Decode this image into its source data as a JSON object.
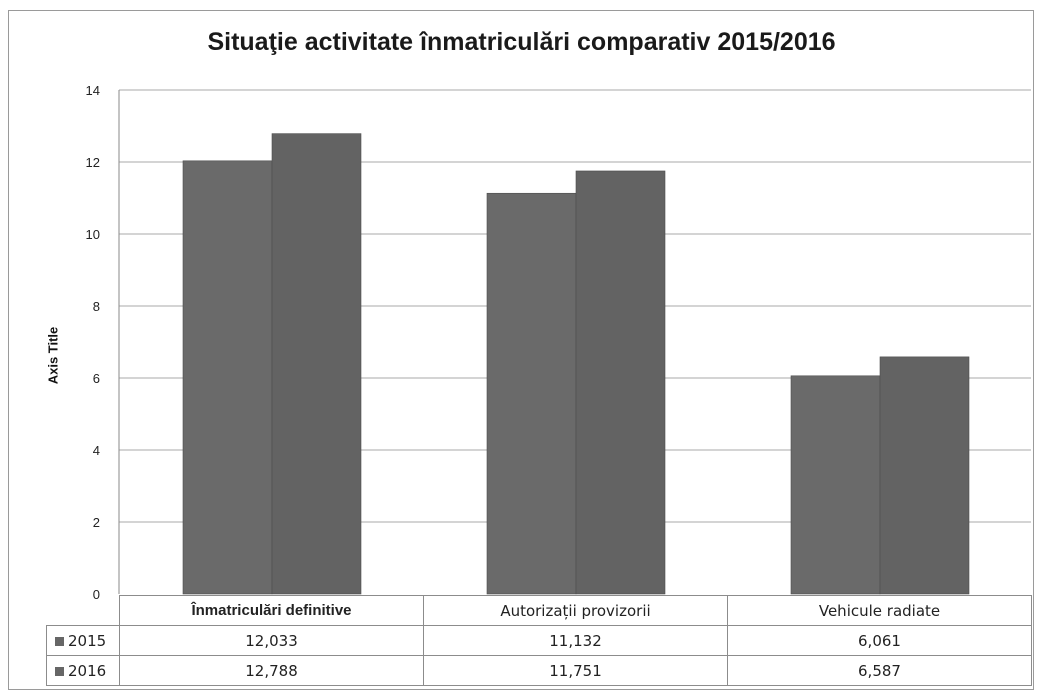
{
  "chart_data": {
    "type": "bar",
    "title": "Situaţie activitate înmatriculări comparativ 2015/2016",
    "xlabel": "",
    "ylabel": "Axis Title",
    "ylim": [
      0,
      14
    ],
    "yticks": [
      0,
      2,
      4,
      6,
      8,
      10,
      12,
      14
    ],
    "grid": true,
    "legend": "data-table",
    "categories": [
      "Înmatriculări definitive",
      "Autorizații provizorii",
      "Vehicule radiate"
    ],
    "series": [
      {
        "name": "2015",
        "values": [
          12.033,
          11.132,
          6.061
        ],
        "labels": [
          "12,033",
          "11,132",
          "6,061"
        ],
        "color": "#6a6a6a"
      },
      {
        "name": "2016",
        "values": [
          12.788,
          11.751,
          6.587
        ],
        "labels": [
          "12,788",
          "11,751",
          "6,587"
        ],
        "color": "#636363"
      }
    ]
  }
}
